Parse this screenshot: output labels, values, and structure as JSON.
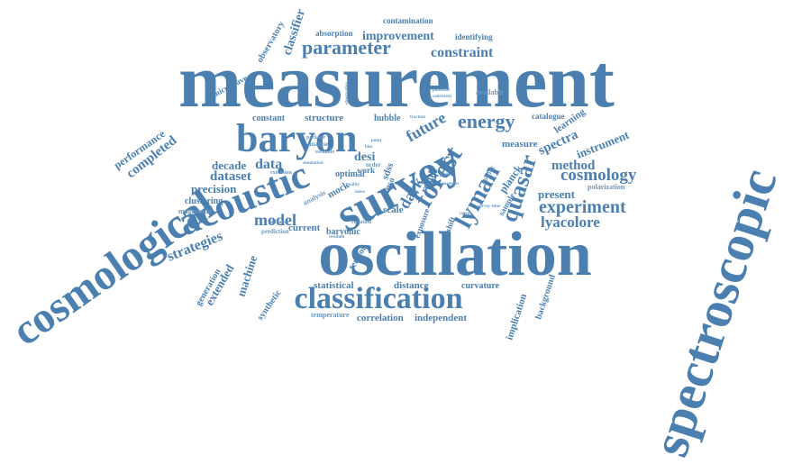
{
  "colors": {
    "background": "#ffffff",
    "word": "#4a7fb0",
    "word_light": "#6a98c4"
  },
  "words": [
    "measurement",
    "oscillation",
    "spectroscopic",
    "cosmological",
    "survey",
    "acoustic",
    "baryon",
    "classification",
    "parameter",
    "forest",
    "lyman",
    "quasar",
    "energy",
    "dark",
    "data",
    "experiment",
    "cosmology",
    "constraint",
    "improvement",
    "absorption",
    "contamination",
    "identifying",
    "classifier",
    "observatory",
    "microwave",
    "performance",
    "completed",
    "decade",
    "dataset",
    "precision",
    "clustering",
    "magnitude",
    "strategies",
    "model",
    "machine",
    "generation",
    "extended",
    "synthetic",
    "constant",
    "structure",
    "hubble",
    "future",
    "catalogue",
    "learning",
    "spectra",
    "instrument",
    "method",
    "present",
    "lyacolore",
    "measure",
    "planck",
    "desi",
    "optimal",
    "current",
    "statistical",
    "distance",
    "curvature",
    "correlation",
    "independent",
    "temperature",
    "implication",
    "background",
    "available",
    "sample",
    "redshift",
    "result",
    "scale",
    "tension",
    "baryonic",
    "exposure",
    "mock",
    "analysis",
    "prediction",
    "polarization",
    "qso",
    "sdss",
    "work",
    "order",
    "cosmic",
    "estimate",
    "analyse",
    "package",
    "extension",
    "advance",
    "equation",
    "fraction",
    "potential",
    "consistent",
    "observation",
    "point",
    "bias",
    "posterior",
    "simulation",
    "residual",
    "probe",
    "quality",
    "noise",
    "survey-time",
    "target"
  ]
}
